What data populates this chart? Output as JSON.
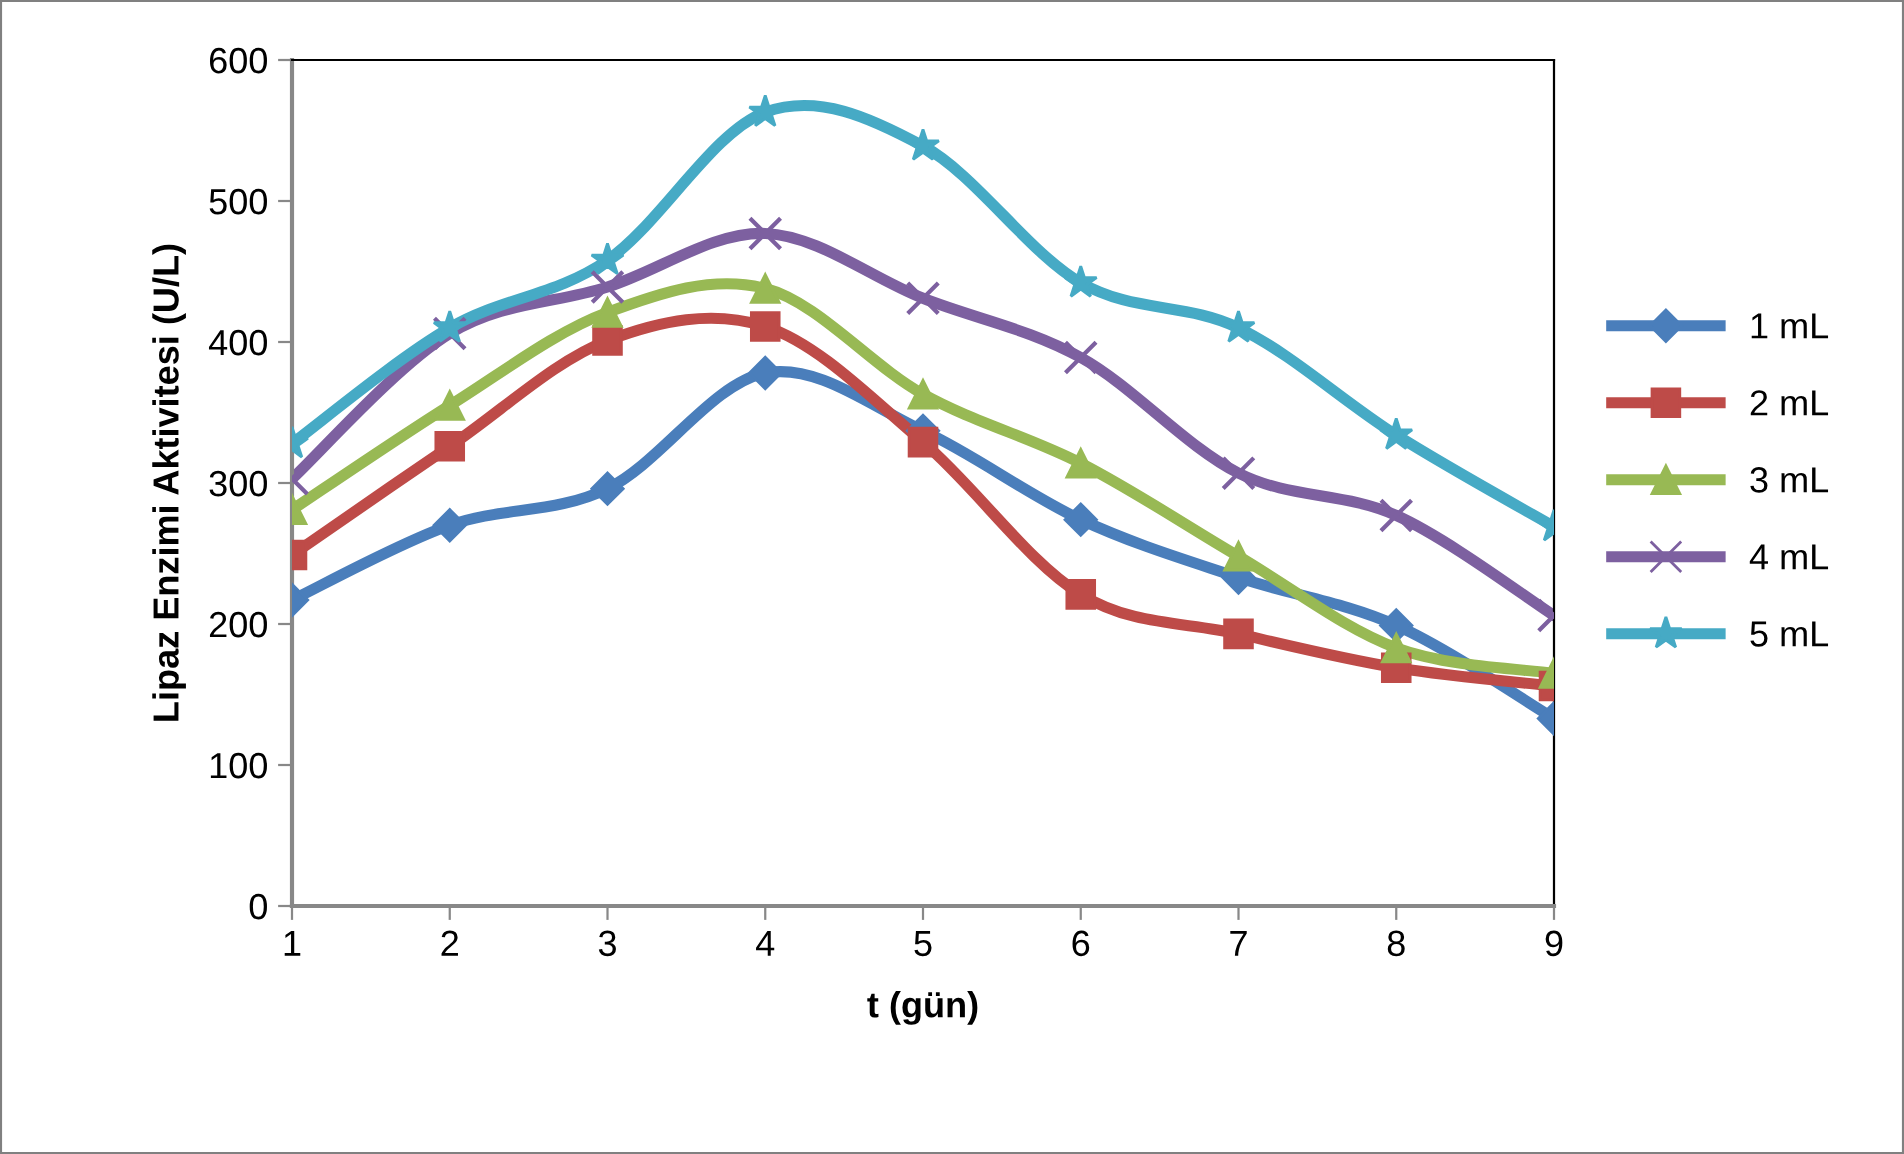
{
  "chart_data": {
    "type": "line",
    "xlabel": "t (gün)",
    "ylabel": "Lipaz Enzimi Aktivitesi (U/L)",
    "x": [
      1,
      2,
      3,
      4,
      5,
      6,
      7,
      8,
      9
    ],
    "series": [
      {
        "name": "1 mL",
        "color": "#4a7ebb",
        "marker": "diamond",
        "values": [
          217,
          270,
          296,
          378,
          337,
          274,
          233,
          199,
          133
        ]
      },
      {
        "name": "2 mL",
        "color": "#be4b48",
        "marker": "square",
        "values": [
          249,
          326,
          401,
          411,
          329,
          221,
          193,
          169,
          156
        ]
      },
      {
        "name": "3 mL",
        "color": "#98b954",
        "marker": "triangle",
        "values": [
          281,
          355,
          421,
          438,
          363,
          314,
          248,
          183,
          165
        ]
      },
      {
        "name": "4 mL",
        "color": "#7d60a0",
        "marker": "cross",
        "values": [
          303,
          406,
          439,
          477,
          431,
          389,
          307,
          277,
          206
        ]
      },
      {
        "name": "5 mL",
        "color": "#46aac5",
        "marker": "star",
        "values": [
          328,
          410,
          458,
          563,
          539,
          442,
          410,
          334,
          269
        ]
      }
    ],
    "xlim": [
      1,
      9
    ],
    "xticks": [
      1,
      2,
      3,
      4,
      5,
      6,
      7,
      8,
      9
    ],
    "ylim": [
      0,
      600
    ],
    "yticks": [
      0,
      100,
      200,
      300,
      400,
      500,
      600
    ],
    "grid": false,
    "legend": "right",
    "line_style": "solid"
  }
}
